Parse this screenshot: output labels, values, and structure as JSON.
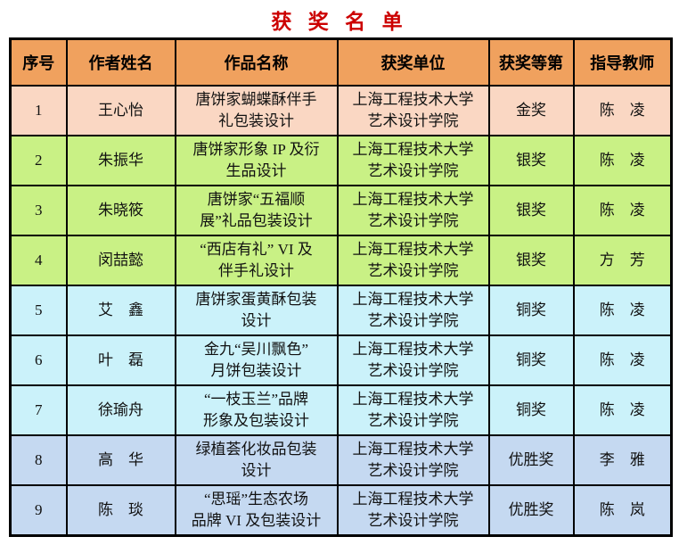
{
  "page": {
    "title": "获 奖 名 单"
  },
  "colors": {
    "title_red": "#cc0000",
    "header_bg": "#f0a15e",
    "gold_row_bg": "#fad7c3",
    "silver_row_bg": "#c9f185",
    "bronze_row_bg": "#cbf2fa",
    "winner_row_bg": "#c5d9f1",
    "grid_border": "#000000"
  },
  "table": {
    "headers": [
      "序号",
      "作者姓名",
      "作品名称",
      "获奖单位",
      "获奖等第",
      "指导教师"
    ],
    "rows": [
      {
        "no": "1",
        "author": "王心怡",
        "work": "唐饼家蝴蝶酥伴手\n礼包装设计",
        "unit": "上海工程技术大学\n艺术设计学院",
        "award": "金奖",
        "teacher": "陈　凌",
        "tier": "gold"
      },
      {
        "no": "2",
        "author": "朱振华",
        "work": "唐饼家形象 IP 及衍\n生品设计",
        "unit": "上海工程技术大学\n艺术设计学院",
        "award": "银奖",
        "teacher": "陈　凌",
        "tier": "silver"
      },
      {
        "no": "3",
        "author": "朱晓筱",
        "work": "唐饼家“五福顺\n展”礼品包装设计",
        "unit": "上海工程技术大学\n艺术设计学院",
        "award": "银奖",
        "teacher": "陈　凌",
        "tier": "silver"
      },
      {
        "no": "4",
        "author": "闵喆懿",
        "work": "“西店有礼” VI 及\n伴手礼设计",
        "unit": "上海工程技术大学\n艺术设计学院",
        "award": "银奖",
        "teacher": "方　芳",
        "tier": "silver"
      },
      {
        "no": "5",
        "author": "艾　鑫",
        "work": "唐饼家蛋黄酥包装\n设计",
        "unit": "上海工程技术大学\n艺术设计学院",
        "award": "铜奖",
        "teacher": "陈　凌",
        "tier": "bronze"
      },
      {
        "no": "6",
        "author": "叶　磊",
        "work": "金九“吴川飘色”\n月饼包装设计",
        "unit": "上海工程技术大学\n艺术设计学院",
        "award": "铜奖",
        "teacher": "陈　凌",
        "tier": "bronze"
      },
      {
        "no": "7",
        "author": "徐瑜舟",
        "work": "“一枝玉兰”品牌\n形象及包装设计",
        "unit": "上海工程技术大学\n艺术设计学院",
        "award": "铜奖",
        "teacher": "陈　凌",
        "tier": "bronze"
      },
      {
        "no": "8",
        "author": "高　华",
        "work": "绿植荟化妆品包装\n设计",
        "unit": "上海工程技术大学\n艺术设计学院",
        "award": "优胜奖",
        "teacher": "李　雅",
        "tier": "winner"
      },
      {
        "no": "9",
        "author": "陈　琰",
        "work": "“思瑶”生态农场\n品牌 VI 及包装设计",
        "unit": "上海工程技术大学\n艺术设计学院",
        "award": "优胜奖",
        "teacher": "陈　岚",
        "tier": "winner"
      }
    ]
  }
}
